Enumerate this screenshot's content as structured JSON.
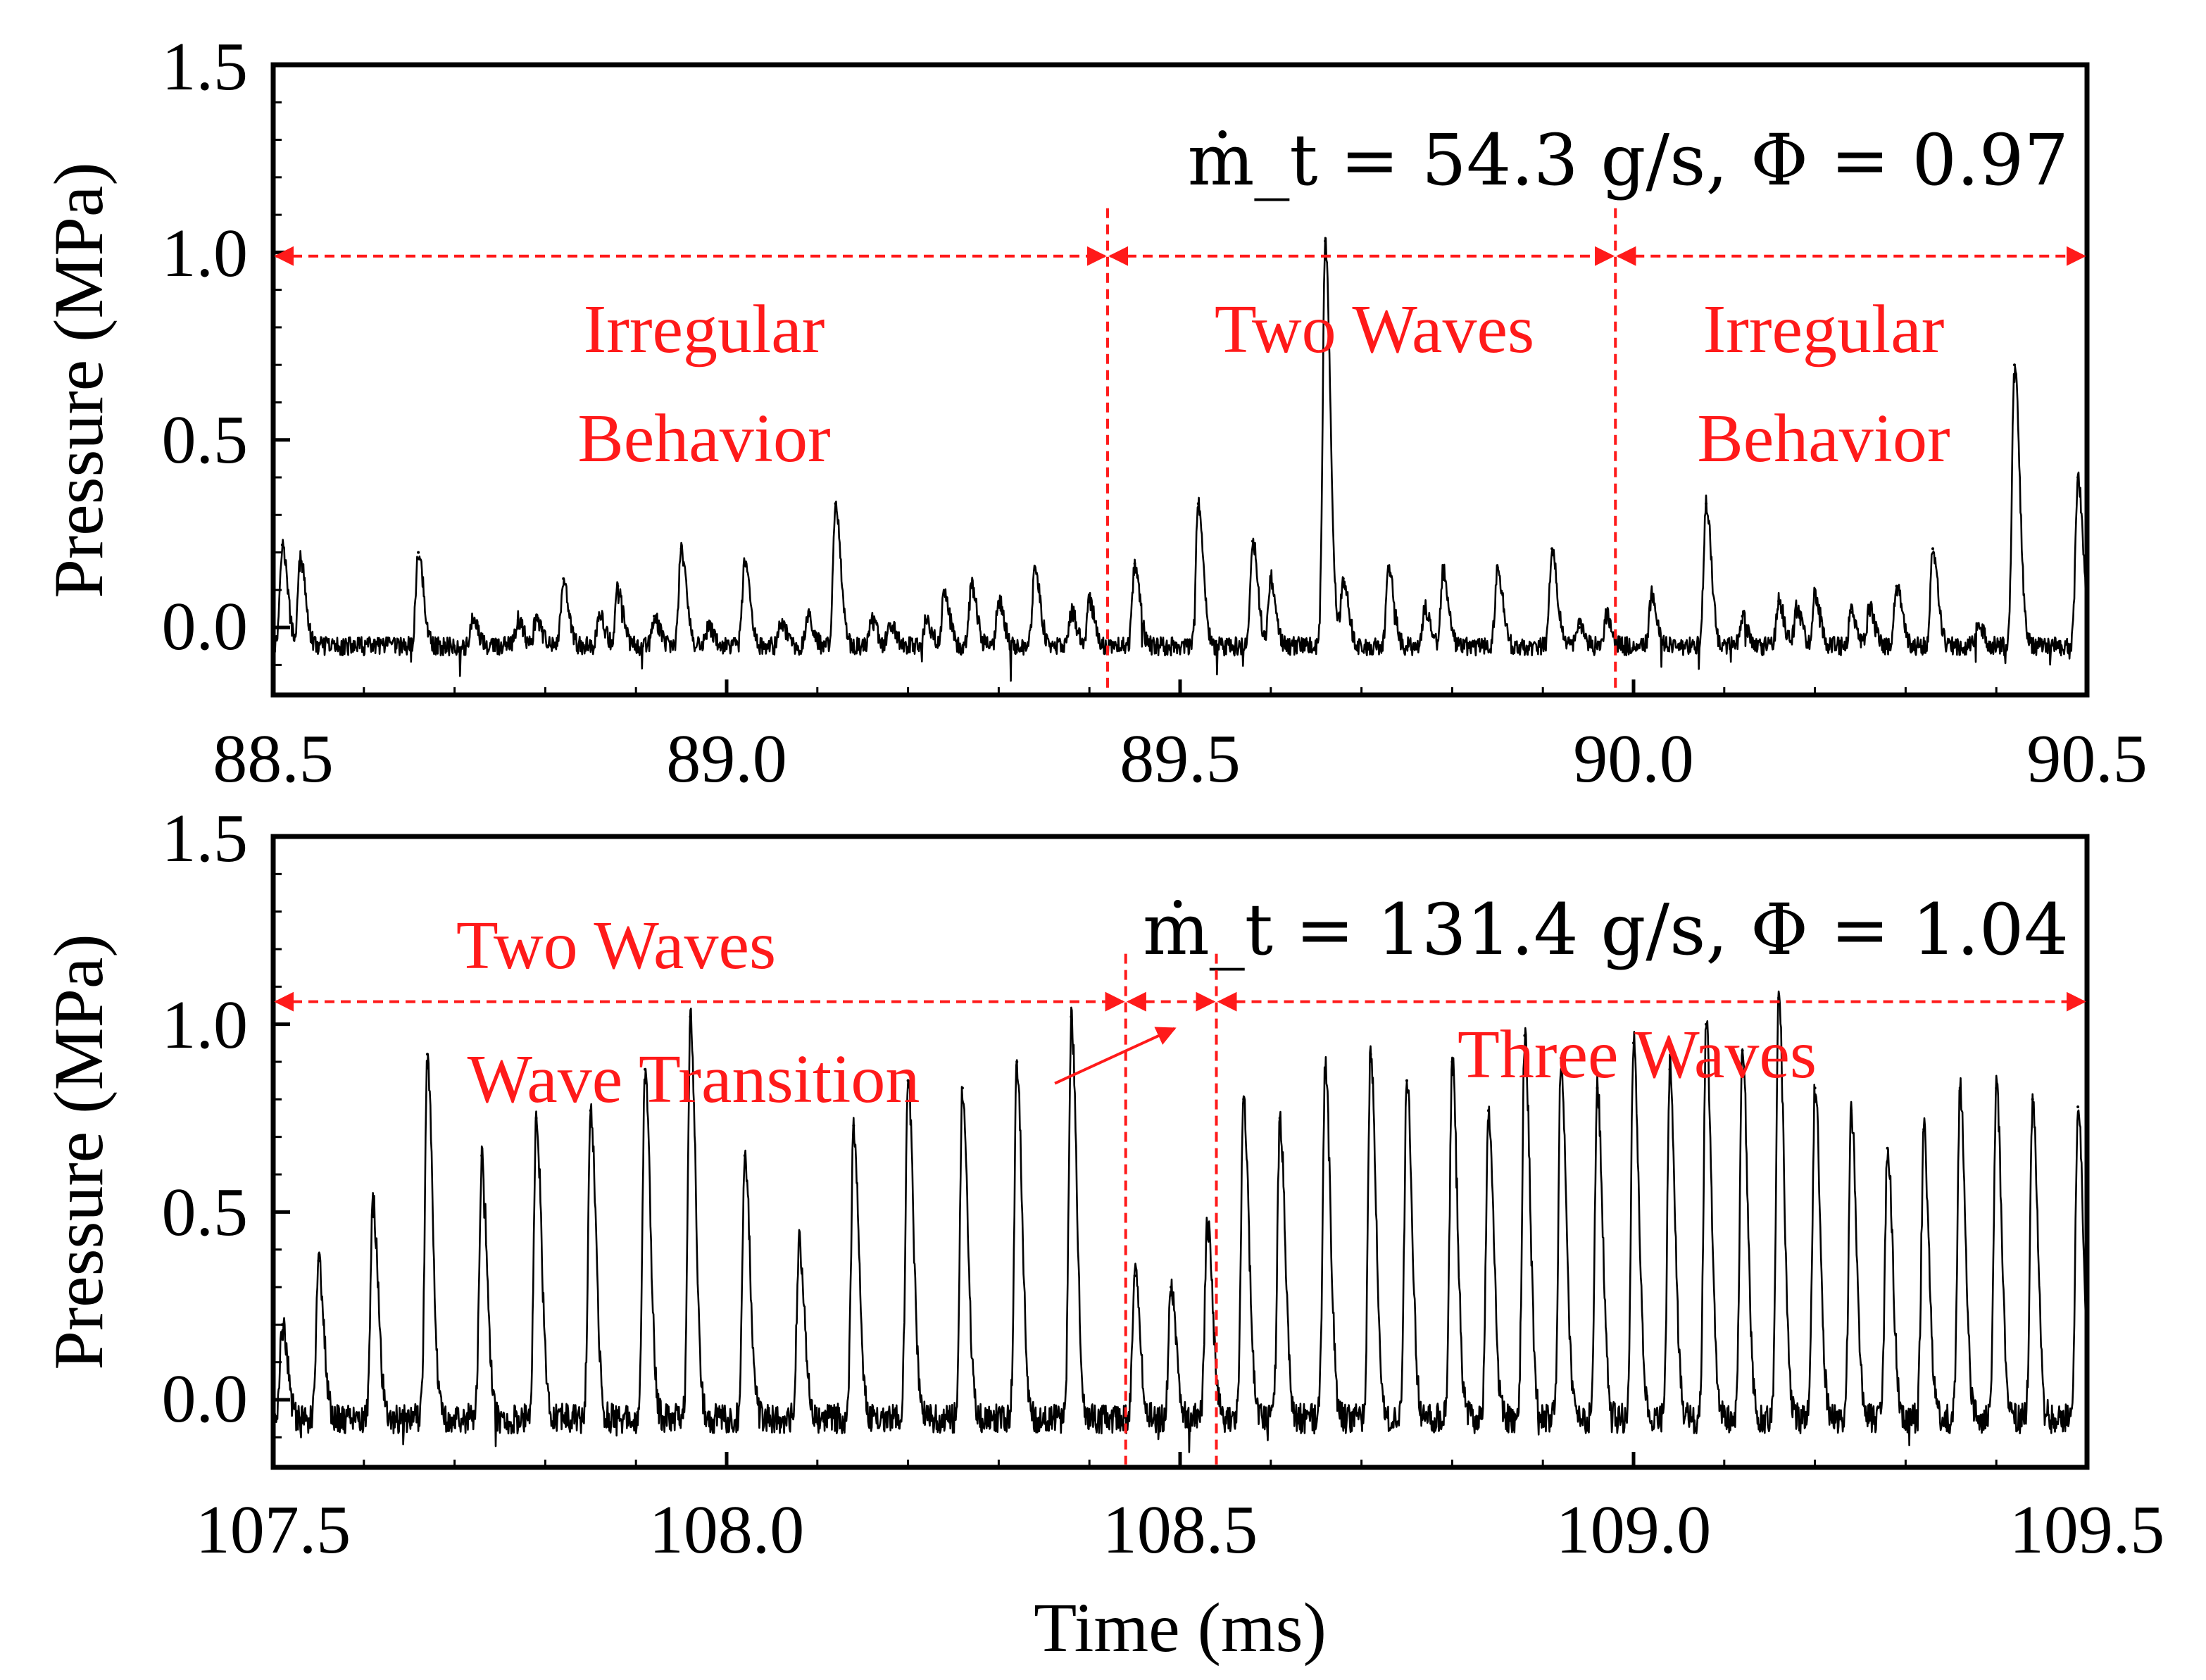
{
  "colors": {
    "signal": "#000000",
    "annotation": "#ff1a1a",
    "frame": "#000000"
  },
  "chart_data": [
    {
      "type": "line",
      "title": "",
      "condition_label": "ṁ_t = 54.3 g/s,  Φ = 0.97",
      "xlabel": "",
      "ylabel": "Pressure (MPa)",
      "xlim": [
        88.5,
        90.5
      ],
      "ylim": [
        -0.18,
        1.5
      ],
      "xticks": [
        88.5,
        89.0,
        89.5,
        90.0,
        90.5
      ],
      "xtick_labels": [
        "88.5",
        "89.0",
        "89.5",
        "90.0",
        "90.5"
      ],
      "yticks": [
        0.0,
        0.5,
        1.0,
        1.5
      ],
      "ytick_labels": [
        "0.0",
        "0.5",
        "1.0",
        "1.5"
      ],
      "series": [
        {
          "name": "Pressure",
          "baseline": -0.05,
          "noise": 0.025,
          "peaks": [
            [
              88.51,
              0.27
            ],
            [
              88.53,
              0.23
            ],
            [
              88.66,
              0.25
            ],
            [
              88.72,
              0.07
            ],
            [
              88.77,
              0.07
            ],
            [
              88.79,
              0.07
            ],
            [
              88.82,
              0.18
            ],
            [
              88.86,
              0.08
            ],
            [
              88.88,
              0.16
            ],
            [
              88.92,
              0.08
            ],
            [
              88.95,
              0.26
            ],
            [
              88.98,
              0.05
            ],
            [
              89.02,
              0.22
            ],
            [
              89.06,
              0.06
            ],
            [
              89.09,
              0.08
            ],
            [
              89.12,
              0.38
            ],
            [
              89.16,
              0.07
            ],
            [
              89.18,
              0.06
            ],
            [
              89.22,
              0.07
            ],
            [
              89.24,
              0.14
            ],
            [
              89.27,
              0.16
            ],
            [
              89.3,
              0.12
            ],
            [
              89.34,
              0.21
            ],
            [
              89.38,
              0.09
            ],
            [
              89.4,
              0.12
            ],
            [
              89.45,
              0.22
            ],
            [
              89.52,
              0.38
            ],
            [
              89.58,
              0.28
            ],
            [
              89.6,
              0.18
            ],
            [
              89.66,
              1.08
            ],
            [
              89.68,
              0.18
            ],
            [
              89.73,
              0.2
            ],
            [
              89.77,
              0.1
            ],
            [
              89.79,
              0.2
            ],
            [
              89.85,
              0.21
            ],
            [
              89.91,
              0.26
            ],
            [
              89.94,
              0.05
            ],
            [
              89.97,
              0.08
            ],
            [
              90.02,
              0.14
            ],
            [
              90.08,
              0.38
            ],
            [
              90.12,
              0.08
            ],
            [
              90.16,
              0.12
            ],
            [
              90.18,
              0.1
            ],
            [
              90.2,
              0.14
            ],
            [
              90.24,
              0.09
            ],
            [
              90.26,
              0.1
            ],
            [
              90.29,
              0.16
            ],
            [
              90.33,
              0.26
            ],
            [
              90.38,
              0.06
            ],
            [
              90.42,
              0.75
            ],
            [
              90.49,
              0.45
            ]
          ]
        }
      ],
      "regions": [
        {
          "label_lines": [
            "Irregular",
            "Behavior"
          ],
          "x_start": 88.5,
          "x_end": 89.42
        },
        {
          "label_lines": [
            "Two Waves"
          ],
          "x_start": 89.42,
          "x_end": 89.98
        },
        {
          "label_lines": [
            "Irregular",
            "Behavior"
          ],
          "x_start": 89.98,
          "x_end": 90.5
        }
      ],
      "boundaries": [
        89.42,
        89.98
      ],
      "arrow_level": 0.99
    },
    {
      "type": "line",
      "title": "",
      "condition_label": "ṁ_t = 131.4 g/s,  Φ = 1.04",
      "xlabel": "Time (ms)",
      "ylabel": "Pressure (MPa)",
      "xlim": [
        107.5,
        109.5
      ],
      "ylim": [
        -0.18,
        1.5
      ],
      "xticks": [
        107.5,
        108.0,
        108.5,
        109.0,
        109.5
      ],
      "xtick_labels": [
        "107.5",
        "108.0",
        "108.5",
        "109.0",
        "109.5"
      ],
      "yticks": [
        0.0,
        0.5,
        1.0,
        1.5
      ],
      "ytick_labels": [
        "0.0",
        "0.5",
        "1.0",
        "1.5"
      ],
      "series": [
        {
          "name": "Pressure",
          "baseline": -0.05,
          "noise": 0.04,
          "peaks": [
            [
              107.51,
              0.25
            ],
            [
              107.55,
              0.42
            ],
            [
              107.61,
              0.57
            ],
            [
              107.67,
              0.97
            ],
            [
              107.73,
              0.7
            ],
            [
              107.79,
              0.8
            ],
            [
              107.85,
              0.82
            ],
            [
              107.91,
              0.93
            ],
            [
              107.96,
              1.07
            ],
            [
              108.02,
              0.7
            ],
            [
              108.08,
              0.47
            ],
            [
              108.14,
              0.78
            ],
            [
              108.2,
              0.9
            ],
            [
              108.26,
              0.88
            ],
            [
              108.32,
              0.95
            ],
            [
              108.38,
              1.07
            ],
            [
              108.45,
              0.38
            ],
            [
              108.49,
              0.35
            ],
            [
              108.53,
              0.52
            ],
            [
              108.57,
              0.85
            ],
            [
              108.61,
              0.8
            ],
            [
              108.66,
              0.93
            ],
            [
              108.71,
              0.97
            ],
            [
              108.75,
              0.9
            ],
            [
              108.8,
              0.95
            ],
            [
              108.84,
              0.82
            ],
            [
              108.88,
              1.02
            ],
            [
              108.92,
              0.96
            ],
            [
              108.96,
              0.88
            ],
            [
              109.0,
              1.0
            ],
            [
              109.04,
              0.93
            ],
            [
              109.08,
              1.05
            ],
            [
              109.12,
              0.98
            ],
            [
              109.16,
              1.12
            ],
            [
              109.2,
              0.88
            ],
            [
              109.24,
              0.82
            ],
            [
              109.28,
              0.72
            ],
            [
              109.32,
              0.77
            ],
            [
              109.36,
              0.88
            ],
            [
              109.4,
              0.88
            ],
            [
              109.44,
              0.85
            ],
            [
              109.49,
              0.83
            ]
          ]
        }
      ],
      "regions": [
        {
          "label_lines": [
            "Two Waves"
          ],
          "x_start": 107.5,
          "x_end": 108.44
        },
        {
          "label_lines": [
            "Wave Transition"
          ],
          "x_start": 108.44,
          "x_end": 108.54
        },
        {
          "label_lines": [
            "Three Waves"
          ],
          "x_start": 108.54,
          "x_end": 109.5
        }
      ],
      "boundaries": [
        108.44,
        108.54
      ],
      "arrow_level": 1.06
    }
  ]
}
